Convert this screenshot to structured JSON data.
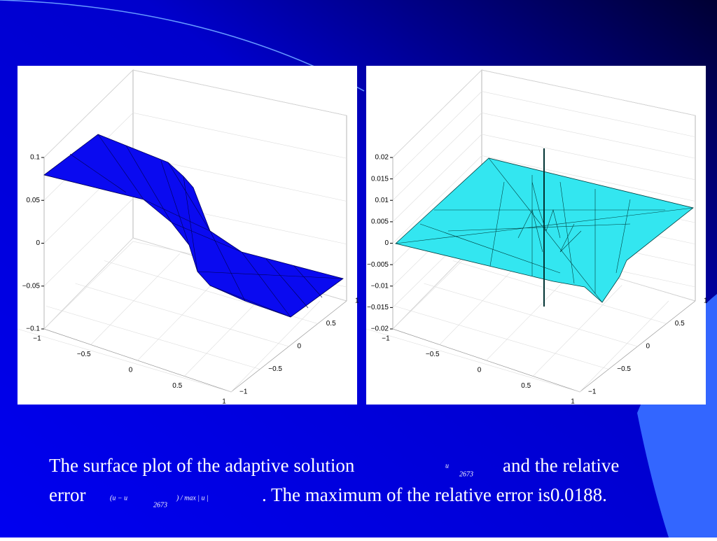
{
  "plots": [
    {
      "z_ticks": [
        "0.1",
        "0.05",
        "0",
        "−0.05",
        "−0.1"
      ],
      "x_ticks": [
        "−1",
        "−0.5",
        "0",
        "0.5",
        "1"
      ],
      "y_ticks": [
        "1",
        "0.5",
        "0",
        "−0.5",
        "−1"
      ]
    },
    {
      "z_ticks": [
        "0.02",
        "0.015",
        "0.01",
        "0.005",
        "0",
        "−0.005",
        "−0.01",
        "−0.015",
        "−0.02"
      ],
      "x_ticks": [
        "−1",
        "−0.5",
        "0",
        "0.5",
        "1"
      ],
      "y_ticks": [
        "1",
        "0.5",
        "0",
        "−0.5",
        "−1"
      ]
    }
  ],
  "caption": {
    "line1_text": "The surface plot of the adaptive solution",
    "symbol_u": "u",
    "subscript": "2673",
    "line1_end": "and the relative",
    "line2_start": "error",
    "formula_open": "(u − u",
    "formula_subscript": "2673",
    "formula_close": ") / max | u |",
    "line2_end": ". The maximum of the relative error is0.0188."
  }
}
